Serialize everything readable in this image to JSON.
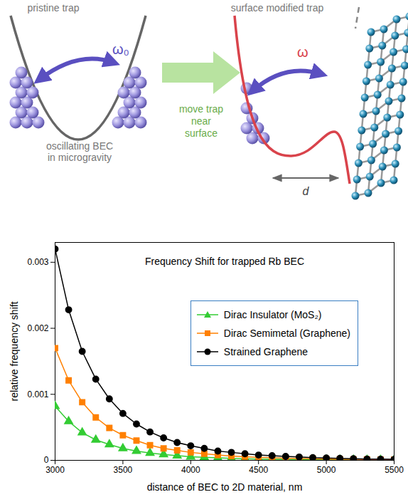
{
  "diagram": {
    "left_panel": {
      "title": "pristine trap",
      "frequency_label": "ω₀",
      "caption": "oscillating BEC in microgravity"
    },
    "arrow_label": "move trap near surface",
    "right_panel": {
      "title": "surface modified trap",
      "frequency_label": "ω",
      "distance_label": "d"
    }
  },
  "chart_data": {
    "type": "line",
    "title": "Frequency Shift for trapped Rb BEC",
    "x_label": "distance of BEC to 2D material, nm",
    "y_label": "relative frequency shift",
    "x": [
      3000,
      3100,
      3200,
      3300,
      3400,
      3500,
      3600,
      3700,
      3800,
      3900,
      4000,
      4100,
      4200,
      4300,
      4400,
      4500,
      4600,
      4700,
      4800,
      4900,
      5000,
      5100,
      5200,
      5300,
      5400,
      5500
    ],
    "series": [
      {
        "name": "Dirac Insulator (MoS₂)",
        "color": "#33cc33",
        "marker": "triangle",
        "values": [
          0.00082,
          0.00059,
          0.00042,
          0.00031,
          0.00024,
          0.00018,
          0.00014,
          0.00011,
          9e-05,
          7e-05,
          5.5e-05,
          4.5e-05,
          3.7e-05,
          3e-05,
          2.5e-05,
          2e-05,
          1.7e-05,
          1.4e-05,
          1.2e-05,
          1e-05,
          9e-06,
          8e-06,
          7e-06,
          6e-06,
          5e-06,
          5e-06
        ]
      },
      {
        "name": "Dirac Semimetal (Graphene)",
        "color": "#ff8000",
        "marker": "square",
        "values": [
          0.0017,
          0.00121,
          0.00088,
          0.00065,
          0.00049,
          0.00038,
          0.0003,
          0.00023,
          0.00018,
          0.00015,
          0.00012,
          0.0001,
          8e-05,
          6.5e-05,
          5.5e-05,
          4.5e-05,
          4e-05,
          3.3e-05,
          2.8e-05,
          2.4e-05,
          2e-05,
          1.7e-05,
          1.5e-05,
          1.3e-05,
          1.1e-05,
          1e-05
        ]
      },
      {
        "name": "Strained Graphene",
        "color": "#000000",
        "marker": "circle",
        "values": [
          0.0032,
          0.00228,
          0.00165,
          0.00123,
          0.00093,
          0.00071,
          0.00055,
          0.00043,
          0.00034,
          0.00027,
          0.00022,
          0.00018,
          0.00014,
          0.00012,
          0.0001,
          8e-05,
          7e-05,
          6e-05,
          5e-05,
          4e-05,
          3.5e-05,
          3e-05,
          2.5e-05,
          2e-05,
          1.8e-05,
          1.5e-05
        ]
      }
    ],
    "xlim": [
      3000,
      5500
    ],
    "xticks": [
      3000,
      3500,
      4000,
      4500,
      5000,
      5500
    ],
    "ylim": [
      0,
      0.0033
    ],
    "yticks": [
      0,
      0.001,
      0.002,
      0.003
    ],
    "legend": "top-right",
    "grid": false
  }
}
